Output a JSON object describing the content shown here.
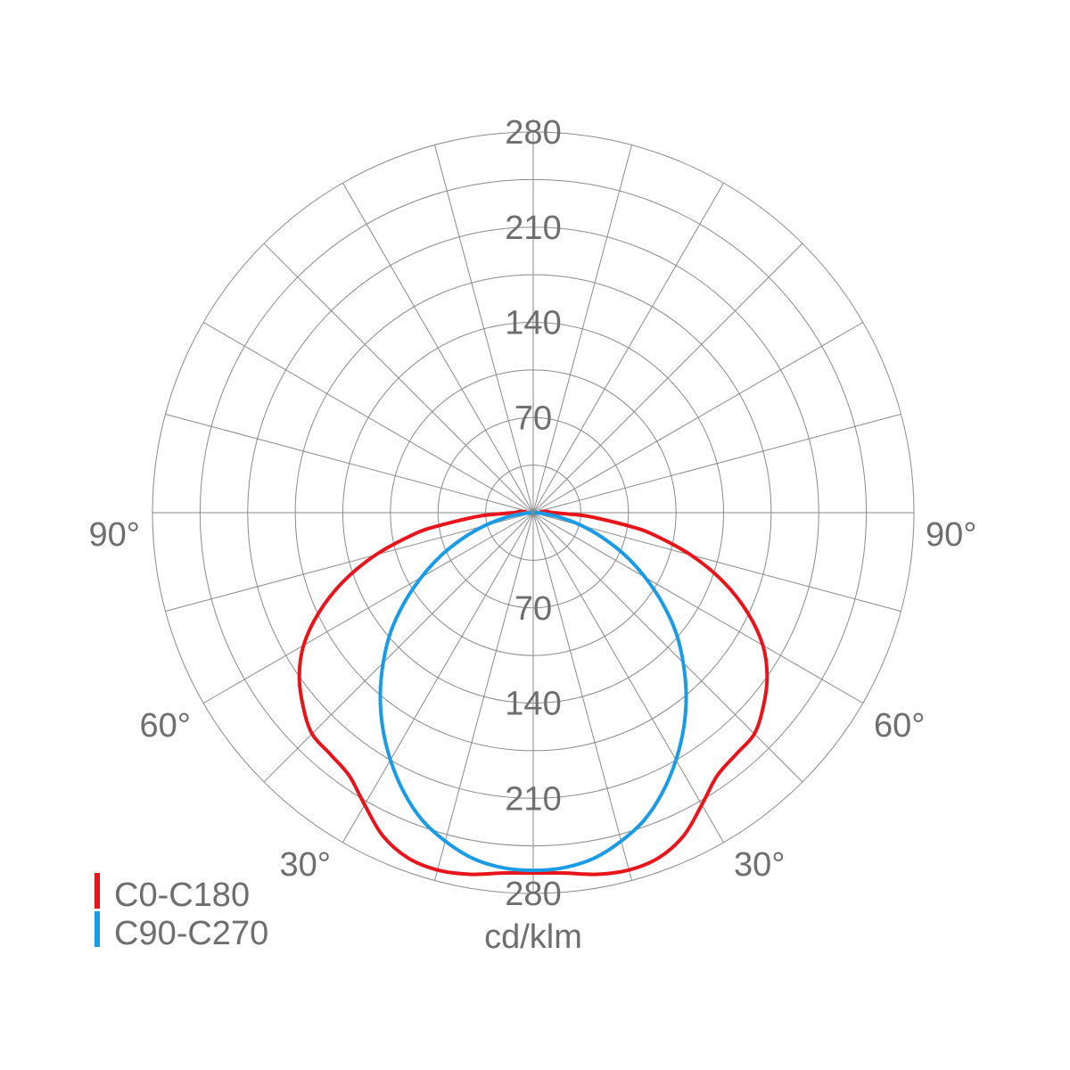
{
  "chart_data": {
    "type": "polar",
    "unit": "cd/klm",
    "radial_ticks": [
      70,
      140,
      210,
      280
    ],
    "radial_max": 280,
    "angle_labels": [
      "90°",
      "60°",
      "30°"
    ],
    "angle_label_values": [
      90,
      60,
      30
    ],
    "series": [
      {
        "name": "C0-C180",
        "color": "#e8141b",
        "gamma": [
          0,
          5,
          10,
          15,
          20,
          25,
          30,
          35,
          40,
          45,
          50,
          55,
          60,
          65,
          70,
          75,
          80,
          82,
          85,
          87,
          90,
          95,
          100
        ],
        "values": [
          265,
          266,
          270,
          272,
          270,
          262,
          248,
          236,
          232,
          230,
          221,
          210,
          195,
          174,
          149,
          120,
          88,
          72,
          48,
          35,
          15,
          10,
          5
        ]
      },
      {
        "name": "C90-C270",
        "color": "#1a9be6",
        "gamma": [
          0,
          5,
          10,
          15,
          20,
          25,
          30,
          35,
          40,
          45,
          50,
          55,
          60,
          65,
          70,
          75,
          80,
          85,
          90
        ],
        "values": [
          263,
          262,
          258,
          250,
          240,
          226,
          210,
          193,
          175,
          156,
          137,
          116,
          95,
          75,
          55,
          37,
          21,
          8,
          1
        ]
      }
    ]
  }
}
